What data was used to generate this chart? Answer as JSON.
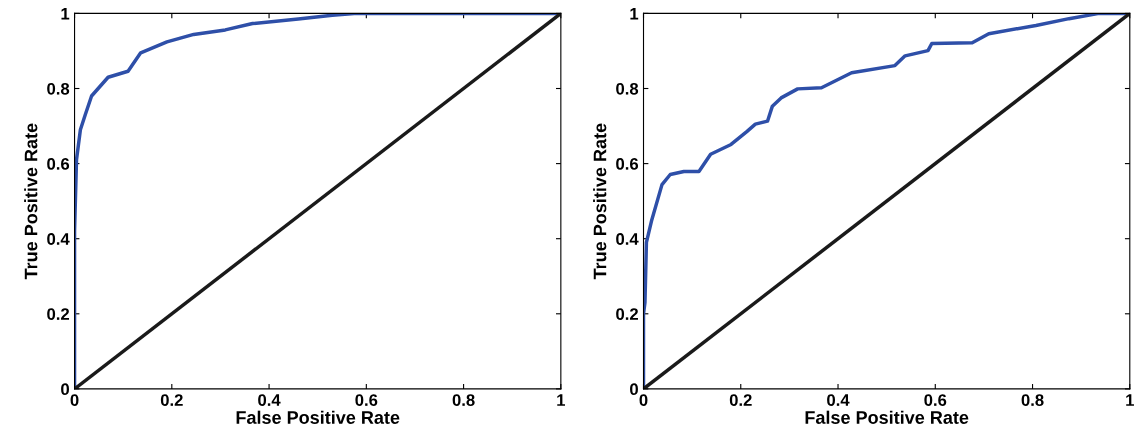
{
  "chart_data": [
    {
      "type": "line",
      "xlabel": "False Positive Rate",
      "ylabel": "True Positive Rate",
      "xlim": [
        0,
        1
      ],
      "ylim": [
        0,
        1
      ],
      "xticks": [
        0,
        0.2,
        0.4,
        0.6,
        0.8,
        1
      ],
      "yticks": [
        0,
        0.2,
        0.4,
        0.6,
        0.8,
        1
      ],
      "grid": false,
      "legend": false,
      "series": [
        {
          "color": "#2e4fa8",
          "x": [
            0,
            0,
            0.004,
            0.012,
            0.022,
            0.035,
            0.069,
            0.11,
            0.136,
            0.19,
            0.245,
            0.31,
            0.366,
            0.46,
            0.53,
            0.575,
            1
          ],
          "values": [
            0,
            0.42,
            0.61,
            0.69,
            0.73,
            0.78,
            0.83,
            0.846,
            0.895,
            0.924,
            0.944,
            0.956,
            0.973,
            0.985,
            0.995,
            1,
            1
          ]
        },
        {
          "color": "#1a1a1a",
          "x": [
            0,
            1
          ],
          "values": [
            0,
            1
          ]
        }
      ]
    },
    {
      "type": "line",
      "xlabel": "False Positive Rate",
      "ylabel": "True Positive Rate",
      "xlim": [
        0,
        1
      ],
      "ylim": [
        0,
        1
      ],
      "xticks": [
        0,
        0.2,
        0.4,
        0.6,
        0.8,
        1
      ],
      "yticks": [
        0,
        0.2,
        0.4,
        0.6,
        0.8,
        1
      ],
      "grid": false,
      "legend": false,
      "series": [
        {
          "color": "#2e4fa8",
          "x": [
            0,
            0,
            0.003,
            0.006,
            0.017,
            0.038,
            0.055,
            0.083,
            0.114,
            0.138,
            0.18,
            0.213,
            0.23,
            0.255,
            0.265,
            0.283,
            0.317,
            0.366,
            0.428,
            0.517,
            0.538,
            0.585,
            0.593,
            0.676,
            0.71,
            0.807,
            0.875,
            0.937,
            1
          ],
          "values": [
            0,
            0.2,
            0.23,
            0.39,
            0.45,
            0.544,
            0.571,
            0.579,
            0.579,
            0.625,
            0.651,
            0.686,
            0.705,
            0.713,
            0.753,
            0.775,
            0.799,
            0.802,
            0.842,
            0.861,
            0.887,
            0.901,
            0.92,
            0.922,
            0.946,
            0.968,
            0.986,
            1,
            1
          ]
        },
        {
          "color": "#1a1a1a",
          "x": [
            0,
            1
          ],
          "values": [
            0,
            1
          ]
        }
      ]
    }
  ]
}
